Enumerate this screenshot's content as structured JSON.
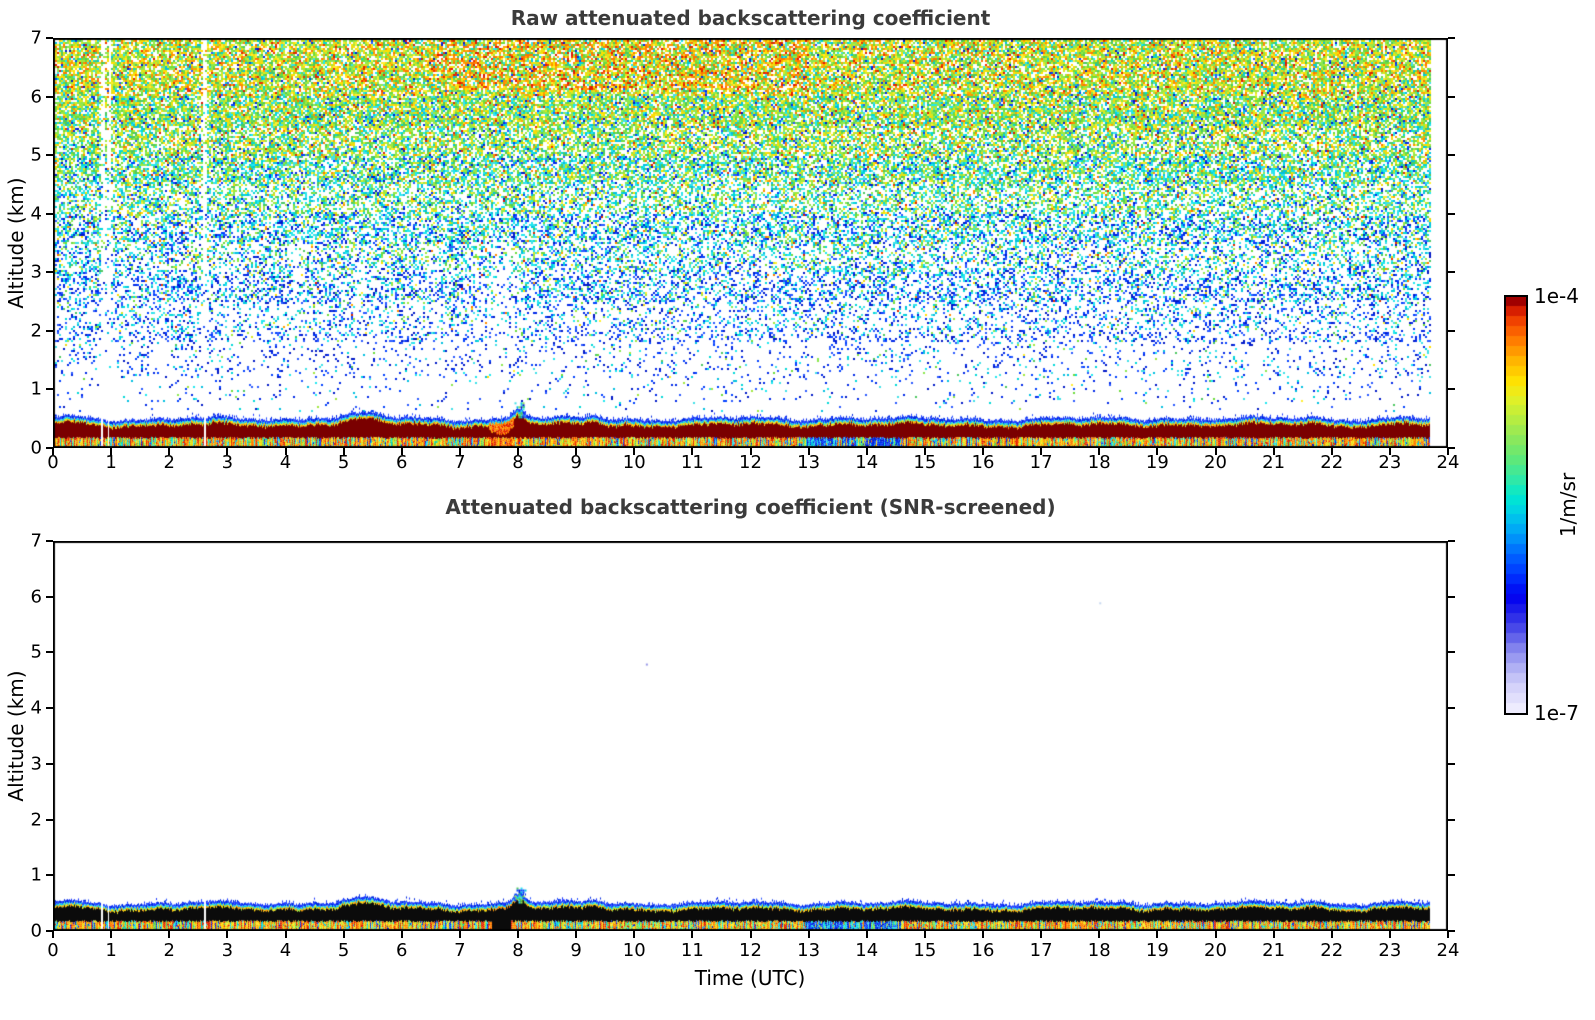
{
  "chart_data": [
    {
      "type": "heatmap",
      "title": "Raw attenuated backscattering coefficient",
      "xlabel": "",
      "ylabel": "Altitude (km)",
      "xlim": [
        0,
        24
      ],
      "ylim": [
        0,
        7
      ],
      "xticks": [
        0,
        1,
        2,
        3,
        4,
        5,
        6,
        7,
        8,
        9,
        10,
        11,
        12,
        13,
        14,
        15,
        16,
        17,
        18,
        19,
        20,
        21,
        22,
        23,
        24
      ],
      "yticks": [
        0,
        1,
        2,
        3,
        4,
        5,
        6,
        7
      ],
      "value_scale": {
        "min": "1e-7",
        "max": "1e-4",
        "units": "1/m/sr",
        "scale": "log"
      },
      "data_end_hour": 23.7,
      "features": {
        "surface_aerosol_band_top_km": 0.5,
        "band_core": "saturated dark-red layer ~0.2-0.45 km",
        "cloud_plume": {
          "hour": 8.0,
          "top_km": 0.78
        },
        "profile_gap_hours": [
          0.85,
          0.95,
          2.6
        ],
        "noise": "speckle noise above the aerosol band, density and color level increase with altitude (blue low, cyan/green mid, green/yellow/orange near 7 km)",
        "hotspot": "slightly enhanced orange/red noise near panel top between ~7 and 13 UTC"
      }
    },
    {
      "type": "heatmap",
      "title": "Attenuated backscattering coefficient (SNR-screened)",
      "xlabel": "Time (UTC)",
      "ylabel": "Altitude (km)",
      "xlim": [
        0,
        24
      ],
      "ylim": [
        0,
        7
      ],
      "xticks": [
        0,
        1,
        2,
        3,
        4,
        5,
        6,
        7,
        8,
        9,
        10,
        11,
        12,
        13,
        14,
        15,
        16,
        17,
        18,
        19,
        20,
        21,
        22,
        23,
        24
      ],
      "yticks": [
        0,
        1,
        2,
        3,
        4,
        5,
        6,
        7
      ],
      "value_scale": {
        "min": "1e-7",
        "max": "1e-4",
        "units": "1/m/sr",
        "scale": "log"
      },
      "data_end_hour": 23.7,
      "features": {
        "surface_aerosol_band_top_km": 0.5,
        "band_core": "screened values plotted black ~0.2-0.45 km",
        "cloud_plume": {
          "hour": 8.0,
          "top_km": 0.78
        },
        "profile_gap_hours": [
          0.85,
          0.95,
          2.6
        ],
        "noise": "all noise above the surface band removed; rest of panel white"
      }
    }
  ],
  "colorbar": {
    "top_label": "1e-4",
    "bottom_label": "1e-7",
    "axis_label": "1/m/sr",
    "segments": 42,
    "stops": [
      [
        0.0,
        "#f4f2ff"
      ],
      [
        0.03,
        "#e4e2fc"
      ],
      [
        0.07,
        "#cfcdf9"
      ],
      [
        0.11,
        "#aeaef4"
      ],
      [
        0.15,
        "#8888ee"
      ],
      [
        0.19,
        "#5555e8"
      ],
      [
        0.24,
        "#2222e8"
      ],
      [
        0.28,
        "#0000f0"
      ],
      [
        0.33,
        "#0033ff"
      ],
      [
        0.38,
        "#0066ff"
      ],
      [
        0.43,
        "#00a0f8"
      ],
      [
        0.48,
        "#00cfe8"
      ],
      [
        0.52,
        "#00e8d0"
      ],
      [
        0.56,
        "#30e8a8"
      ],
      [
        0.61,
        "#60e878"
      ],
      [
        0.66,
        "#8ee85a"
      ],
      [
        0.71,
        "#bcee3e"
      ],
      [
        0.76,
        "#e8f022"
      ],
      [
        0.8,
        "#ffe000"
      ],
      [
        0.85,
        "#ffb000"
      ],
      [
        0.89,
        "#ff8000"
      ],
      [
        0.93,
        "#f85000"
      ],
      [
        0.96,
        "#e02800"
      ],
      [
        0.98,
        "#b80000"
      ],
      [
        1.0,
        "#7c0000"
      ]
    ]
  },
  "render": {
    "band": {
      "top_km_base": 0.5,
      "wobble": [
        [
          2.1,
          0.026
        ],
        [
          5.3,
          0.016
        ],
        [
          11.7,
          0.01
        ]
      ],
      "jitter": 0.02,
      "bumps": [
        {
          "h": 5.35,
          "w": 0.28,
          "a": 0.09
        },
        {
          "h": 8.02,
          "w": 0.1,
          "a": 0.2
        },
        {
          "h": 4.55,
          "w": 0.18,
          "a": 0.04
        },
        {
          "h": 9.3,
          "w": 0.12,
          "a": 0.05
        },
        {
          "h": 13.5,
          "w": 0.3,
          "a": 0.03
        },
        {
          "h": 19.15,
          "w": 0.12,
          "a": 0.04
        },
        {
          "h": 21.6,
          "w": 0.25,
          "a": 0.03
        },
        {
          "h": 0.3,
          "w": 0.2,
          "a": 0.04
        }
      ],
      "blue_cap_km": 0.045,
      "cyan_km": 0.025,
      "fringe_km": 0.03,
      "core_bottom_km": 0.17,
      "core_bottom_jitter": 0.04,
      "gaps": [
        [
          0.85,
          0.016
        ],
        [
          0.96,
          0.012
        ],
        [
          2.61,
          0.016
        ]
      ],
      "disturbance": {
        "h": 7.72,
        "w": 0.16
      },
      "blue_patch": [
        12.9,
        14.6
      ],
      "plume": {
        "h": 8.03,
        "w": 0.09,
        "top_km": 0.78,
        "base_km": 0.52
      }
    },
    "noise": {
      "cell": 2,
      "density_by_alt": [
        [
          5.5,
          0.8
        ],
        [
          4.5,
          0.66
        ],
        [
          3.5,
          0.5
        ],
        [
          2.5,
          0.36
        ],
        [
          1.8,
          0.22
        ],
        [
          1.2,
          0.1
        ],
        [
          0.8,
          0.045
        ],
        [
          0.0,
          0.02
        ]
      ],
      "column_dips": [
        {
          "h": 0.87,
          "w": 0.03,
          "f": 0.06,
          "full": true
        },
        {
          "h": 0.97,
          "w": 0.022,
          "f": 0.15,
          "full": true
        },
        {
          "h": 2.61,
          "w": 0.03,
          "f": 0.08,
          "full": true
        },
        {
          "h": 4.17,
          "w": 0.06,
          "f": 0.45,
          "full": false
        },
        {
          "h": 7.7,
          "w": 0.18,
          "f": 0.5,
          "full": false
        },
        {
          "h": 3.05,
          "w": 0.08,
          "f": 0.75,
          "full": false
        },
        {
          "h": 5.25,
          "w": 0.1,
          "f": 0.75,
          "full": false
        },
        {
          "h": 6.45,
          "w": 0.08,
          "f": 0.7,
          "full": false
        }
      ],
      "alt_weights": [
        {
          "min": 6.0,
          "w": {
            "blue": 0.03,
            "cyan": 0.1,
            "green": 0.38,
            "yellow": 0.3,
            "orange": 0.15,
            "red": 0.04
          }
        },
        {
          "min": 5.0,
          "w": {
            "blue": 0.06,
            "cyan": 0.22,
            "green": 0.42,
            "yellow": 0.22,
            "orange": 0.06,
            "red": 0.02
          }
        },
        {
          "min": 4.0,
          "w": {
            "blue": 0.12,
            "cyan": 0.38,
            "green": 0.34,
            "yellow": 0.12,
            "orange": 0.03,
            "red": 0.01
          }
        },
        {
          "min": 3.0,
          "w": {
            "blue": 0.3,
            "cyan": 0.42,
            "green": 0.2,
            "yellow": 0.06,
            "orange": 0.015,
            "red": 0.005
          }
        },
        {
          "min": 2.0,
          "w": {
            "blue": 0.5,
            "cyan": 0.38,
            "green": 0.09,
            "yellow": 0.02,
            "orange": 0.007,
            "red": 0.003
          }
        },
        {
          "min": 0.0,
          "w": {
            "blue": 0.68,
            "cyan": 0.26,
            "green": 0.05,
            "yellow": 0.01,
            "orange": 0.0,
            "red": 0.0
          }
        }
      ],
      "hotspot": {
        "h0": 6.5,
        "h1": 13.0,
        "alt": 6.1,
        "orange_boost": 0.26,
        "red_boost": 0.08
      }
    },
    "sub_weights": {
      "default": {
        "orange": 0.27,
        "red": 0.16,
        "yellow": 0.22,
        "green": 0.14,
        "cyan": 0.14,
        "blue": 0.07
      },
      "blue_patch": {
        "blue": 0.5,
        "cyan": 0.3,
        "green": 0.1,
        "yellow": 0.04,
        "orange": 0.04,
        "red": 0.02
      },
      "disturbance": {
        "orange": 0.48,
        "red": 0.37,
        "yellow": 0.1,
        "green": 0.02,
        "cyan": 0.02,
        "blue": 0.01
      }
    },
    "shades": {
      "blue": [
        "#0040ff",
        "#0028e8",
        "#2858ff",
        "#0018c8"
      ],
      "cyan": [
        "#00d8d8",
        "#20e8f0",
        "#00c0e0",
        "#40e0e8"
      ],
      "green": [
        "#6cdc3c",
        "#8ce850",
        "#4cc860",
        "#a0e840"
      ],
      "yellow": [
        "#ffe000",
        "#f0d810",
        "#ffee30",
        "#d8e820"
      ],
      "orange": [
        "#ff8c00",
        "#ff7400",
        "#ffa400"
      ],
      "red": [
        "#f03000",
        "#e01800",
        "#d82800"
      ]
    },
    "band_edge_colors": {
      "blue_cap": [
        "#1a35ff",
        "#2850ff",
        "#0028e0"
      ],
      "cyan_line": [
        "#00c8f0",
        "#20e0e0"
      ],
      "fringe": [
        "#ffe000",
        "#ff9800",
        "#a0e030",
        "#ffc000"
      ]
    },
    "core_colors": {
      "raw": "#7a0000",
      "screened": "#0b0b0b"
    },
    "screened_dots": [
      {
        "h": 10.2,
        "km": 4.8,
        "c": "#9898e8"
      },
      {
        "h": 18.0,
        "km": 5.9,
        "c": "#c8d8f0"
      }
    ],
    "seed": 1337
  }
}
